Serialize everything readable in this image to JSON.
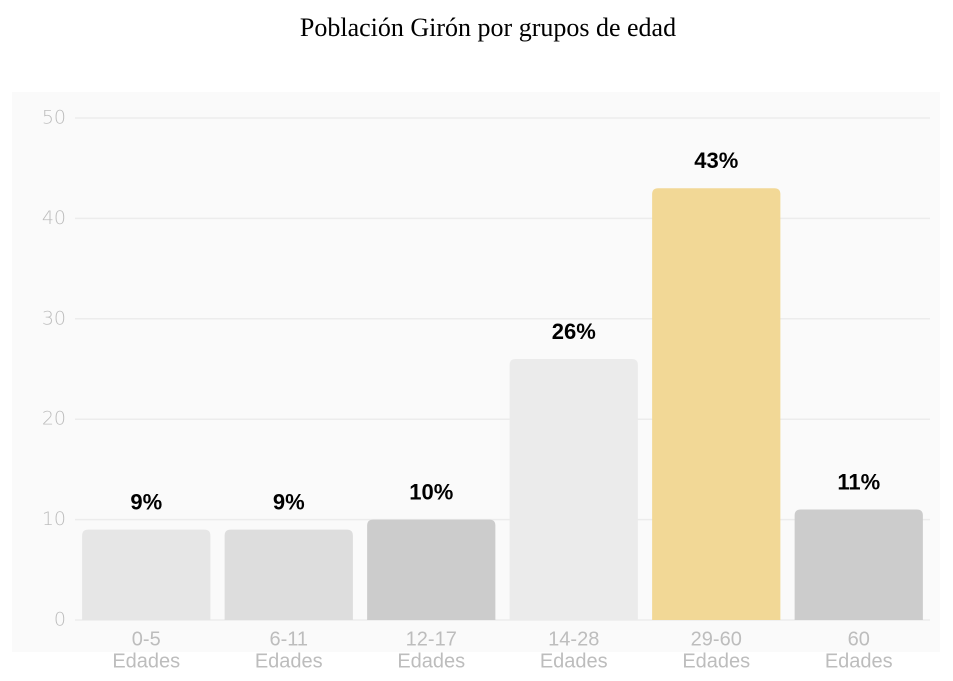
{
  "chart_data": {
    "type": "bar",
    "title": "Población Girón por grupos de edad",
    "categories": [
      "0-5",
      "6-11",
      "12-17",
      "14-28",
      "29-60",
      "60"
    ],
    "category_units": [
      "Edades",
      "Edades",
      "Edades",
      "Edades",
      "Edades",
      "Edades"
    ],
    "values": [
      9,
      9,
      10,
      26,
      43,
      11
    ],
    "value_labels": [
      "9%",
      "9%",
      "10%",
      "26%",
      "43%",
      "11%"
    ],
    "colors": [
      "#e6e6e6",
      "#dddddd",
      "#cccccc",
      "#ebebeb",
      "#f2d896",
      "#cccccc"
    ],
    "ylim": [
      0,
      50
    ],
    "yticks": [
      0,
      10,
      20,
      30,
      40,
      50
    ],
    "grid": true
  }
}
